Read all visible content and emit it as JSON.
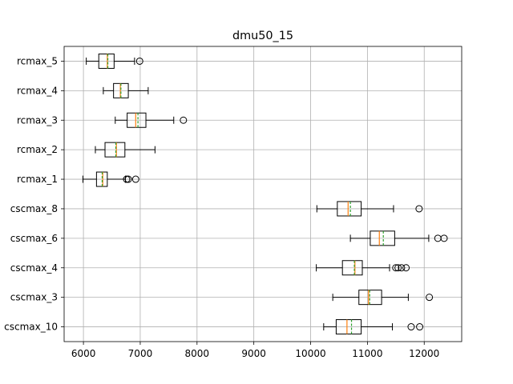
{
  "chart_data": {
    "type": "boxplot",
    "orientation": "horizontal",
    "title": "dmu50_15",
    "xlabel": "",
    "ylabel": "",
    "xlim": [
      5660,
      12660
    ],
    "x_ticks": [
      6000,
      7000,
      8000,
      9000,
      10000,
      11000,
      12000
    ],
    "grid": true,
    "series_style": {
      "box_edge": "#000000",
      "median_color": "#ff7f0e",
      "mean_color": "#2ca02c",
      "mean_line_style": "dashed",
      "outlier_marker": "open-circle"
    },
    "categories": [
      "cscmax_10",
      "cscmax_3",
      "cscmax_4",
      "cscmax_6",
      "cscmax_8",
      "rcmax_1",
      "rcmax_2",
      "rcmax_3",
      "rcmax_4",
      "rcmax_5"
    ],
    "boxes": [
      {
        "label": "cscmax_10",
        "whisker_low": 10230,
        "q1": 10450,
        "median": 10640,
        "mean": 10720,
        "q3": 10890,
        "whisker_high": 11440,
        "outliers": [
          11770,
          11920
        ]
      },
      {
        "label": "cscmax_3",
        "whisker_low": 10390,
        "q1": 10850,
        "median": 11020,
        "mean": 11040,
        "q3": 11250,
        "whisker_high": 11720,
        "outliers": [
          12090
        ]
      },
      {
        "label": "cscmax_4",
        "whisker_low": 10100,
        "q1": 10560,
        "median": 10780,
        "mean": 10770,
        "q3": 10910,
        "whisker_high": 11390,
        "outliers": [
          11500,
          11540,
          11600,
          11680
        ]
      },
      {
        "label": "cscmax_6",
        "whisker_low": 10700,
        "q1": 11050,
        "median": 11210,
        "mean": 11280,
        "q3": 11480,
        "whisker_high": 12080,
        "outliers": [
          12240,
          12350
        ]
      },
      {
        "label": "cscmax_8",
        "whisker_low": 10110,
        "q1": 10470,
        "median": 10660,
        "mean": 10700,
        "q3": 10890,
        "whisker_high": 11460,
        "outliers": [
          11910
        ]
      },
      {
        "label": "rcmax_1",
        "whisker_low": 5990,
        "q1": 6230,
        "median": 6340,
        "mean": 6330,
        "q3": 6420,
        "whisker_high": 6740,
        "outliers": [
          6760,
          6790,
          6920
        ]
      },
      {
        "label": "rcmax_2",
        "whisker_low": 6210,
        "q1": 6380,
        "median": 6580,
        "mean": 6570,
        "q3": 6730,
        "whisker_high": 7260,
        "outliers": []
      },
      {
        "label": "rcmax_3",
        "whisker_low": 6560,
        "q1": 6770,
        "median": 6920,
        "mean": 6960,
        "q3": 7100,
        "whisker_high": 7590,
        "outliers": [
          7760
        ]
      },
      {
        "label": "rcmax_4",
        "whisker_low": 6350,
        "q1": 6530,
        "median": 6650,
        "mean": 6660,
        "q3": 6790,
        "whisker_high": 7140,
        "outliers": []
      },
      {
        "label": "rcmax_5",
        "whisker_low": 6050,
        "q1": 6270,
        "median": 6420,
        "mean": 6430,
        "q3": 6540,
        "whisker_high": 6900,
        "outliers": [
          6990
        ]
      }
    ]
  }
}
